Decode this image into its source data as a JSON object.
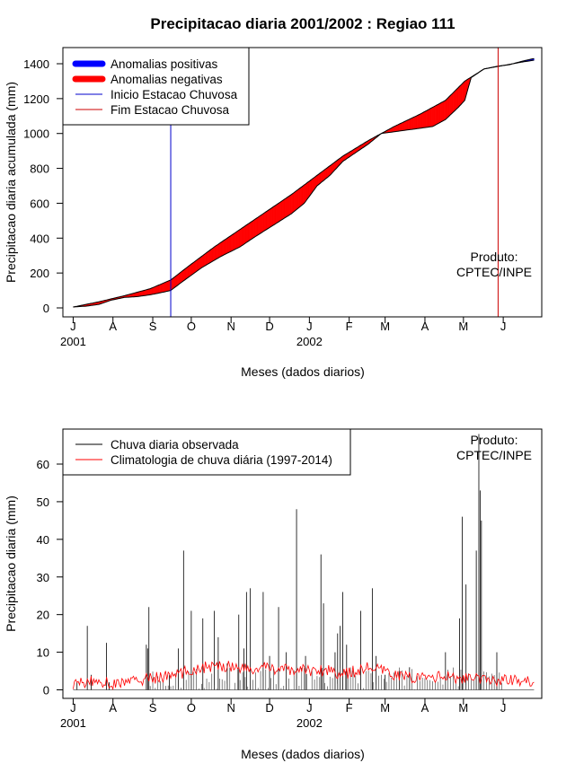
{
  "title": "Precipitacao diaria 2001/2002 : Regiao 111",
  "product_label": [
    "Produto:",
    "CPTEC/INPE"
  ],
  "colors": {
    "positive_anomaly": "#0000ff",
    "negative_anomaly": "#ff0000",
    "season_start": "#0000cc",
    "season_end": "#cc0000",
    "observed": "#000000",
    "climatology": "#ff0000"
  },
  "chart_data": [
    {
      "type": "area",
      "ylabel": "Precipitacao diaria acumulada (mm)",
      "xlabel": "Meses (dados diarios)",
      "ylim": [
        0,
        1450
      ],
      "yticks": [
        0,
        200,
        400,
        600,
        800,
        1000,
        1200,
        1400
      ],
      "xlim_days": [
        -8,
        365
      ],
      "month_ticks": [
        {
          "label": "J",
          "day": 0
        },
        {
          "label": "A",
          "day": 31
        },
        {
          "label": "S",
          "day": 62
        },
        {
          "label": "O",
          "day": 92
        },
        {
          "label": "N",
          "day": 123
        },
        {
          "label": "D",
          "day": 153
        },
        {
          "label": "J",
          "day": 184
        },
        {
          "label": "F",
          "day": 215
        },
        {
          "label": "M",
          "day": 243
        },
        {
          "label": "A",
          "day": 274
        },
        {
          "label": "M",
          "day": 304
        },
        {
          "label": "J",
          "day": 335
        }
      ],
      "year_labels": [
        {
          "label": "2001",
          "day": 0
        },
        {
          "label": "2002",
          "day": 184
        }
      ],
      "legend": {
        "placement": "top-left",
        "entries": [
          "Anomalias positivas",
          "Anomalias negativas",
          "Inicio Estacao Chuvosa",
          "Fim Estacao Chuvosa"
        ]
      },
      "season_start_day": 76,
      "season_end_day": 331,
      "climatology_cumulative": {
        "days": [
          0,
          20,
          40,
          60,
          76,
          90,
          110,
          130,
          150,
          170,
          190,
          210,
          230,
          250,
          270,
          290,
          305,
          320,
          335,
          350,
          359
        ],
        "values": [
          5,
          35,
          70,
          110,
          160,
          240,
          350,
          450,
          550,
          650,
          760,
          870,
          960,
          1040,
          1110,
          1190,
          1300,
          1370,
          1390,
          1410,
          1420
        ]
      },
      "observed_cumulative": {
        "days": [
          0,
          10,
          20,
          30,
          40,
          50,
          60,
          70,
          76,
          85,
          100,
          115,
          130,
          140,
          155,
          170,
          180,
          190,
          200,
          210,
          220,
          230,
          240,
          250,
          260,
          270,
          280,
          290,
          300,
          305,
          310,
          320,
          330,
          340,
          350,
          359
        ],
        "values": [
          5,
          10,
          20,
          45,
          60,
          65,
          75,
          90,
          100,
          150,
          230,
          295,
          350,
          400,
          470,
          540,
          600,
          700,
          760,
          840,
          890,
          940,
          1000,
          1010,
          1020,
          1030,
          1040,
          1080,
          1150,
          1190,
          1320,
          1370,
          1385,
          1395,
          1415,
          1430
        ]
      }
    },
    {
      "type": "line",
      "ylabel": "Precipitacao diaria (mm)",
      "xlabel": "Meses (dados diarios)",
      "ylim": [
        0,
        70
      ],
      "yticks": [
        0,
        10,
        20,
        30,
        40,
        50,
        60
      ],
      "xlim_days": [
        -8,
        365
      ],
      "month_ticks": [
        {
          "label": "J",
          "day": 0
        },
        {
          "label": "A",
          "day": 31
        },
        {
          "label": "S",
          "day": 62
        },
        {
          "label": "O",
          "day": 92
        },
        {
          "label": "N",
          "day": 123
        },
        {
          "label": "D",
          "day": 153
        },
        {
          "label": "J",
          "day": 184
        },
        {
          "label": "F",
          "day": 215
        },
        {
          "label": "M",
          "day": 243
        },
        {
          "label": "A",
          "day": 274
        },
        {
          "label": "M",
          "day": 304
        },
        {
          "label": "J",
          "day": 335
        }
      ],
      "year_labels": [
        {
          "label": "2001",
          "day": 0
        },
        {
          "label": "2002",
          "day": 184
        }
      ],
      "legend": {
        "placement": "top-left",
        "entries": [
          "Chuva diaria observada",
          "Climatologia de chuva diária (1997-2014)"
        ]
      },
      "observed_daily_spikes": [
        [
          3,
          2
        ],
        [
          11,
          17
        ],
        [
          14,
          4
        ],
        [
          26,
          12.5
        ],
        [
          28,
          2
        ],
        [
          57,
          12
        ],
        [
          59,
          22
        ],
        [
          58,
          11
        ],
        [
          75,
          4
        ],
        [
          82,
          11
        ],
        [
          86,
          37
        ],
        [
          92,
          21
        ],
        [
          101,
          19
        ],
        [
          110,
          21
        ],
        [
          113,
          14
        ],
        [
          120,
          7
        ],
        [
          129,
          20
        ],
        [
          133,
          11
        ],
        [
          135,
          26
        ],
        [
          138,
          27
        ],
        [
          148,
          26
        ],
        [
          153,
          9
        ],
        [
          160,
          22
        ],
        [
          166,
          10
        ],
        [
          174,
          48
        ],
        [
          181,
          9
        ],
        [
          193,
          36
        ],
        [
          195,
          23
        ],
        [
          204,
          10
        ],
        [
          206,
          15
        ],
        [
          208,
          17
        ],
        [
          210,
          26
        ],
        [
          213,
          12
        ],
        [
          224,
          21
        ],
        [
          233,
          27
        ],
        [
          236,
          9
        ],
        [
          243,
          4
        ],
        [
          254,
          5
        ],
        [
          262,
          6
        ],
        [
          290,
          10
        ],
        [
          301,
          19
        ],
        [
          303,
          46
        ],
        [
          306,
          28
        ],
        [
          314,
          37
        ],
        [
          316,
          68
        ],
        [
          317,
          53
        ],
        [
          318,
          45
        ],
        [
          330,
          10
        ]
      ],
      "climatology_daily": {
        "days": [
          0,
          10,
          20,
          30,
          40,
          50,
          60,
          70,
          80,
          90,
          100,
          110,
          120,
          130,
          140,
          150,
          160,
          170,
          180,
          190,
          200,
          210,
          220,
          230,
          240,
          250,
          260,
          270,
          280,
          290,
          300,
          310,
          320,
          330,
          340,
          350,
          360
        ],
        "values": [
          1.5,
          2,
          2.5,
          1.5,
          2,
          2.5,
          3,
          3.5,
          4,
          5,
          6,
          6,
          6.5,
          6,
          5,
          6,
          5.5,
          5,
          5.5,
          5,
          5.5,
          4,
          5,
          6,
          5,
          4,
          3.5,
          3,
          3.5,
          3.5,
          3,
          3,
          2.5,
          2.5,
          3,
          2,
          2.5
        ]
      }
    }
  ]
}
